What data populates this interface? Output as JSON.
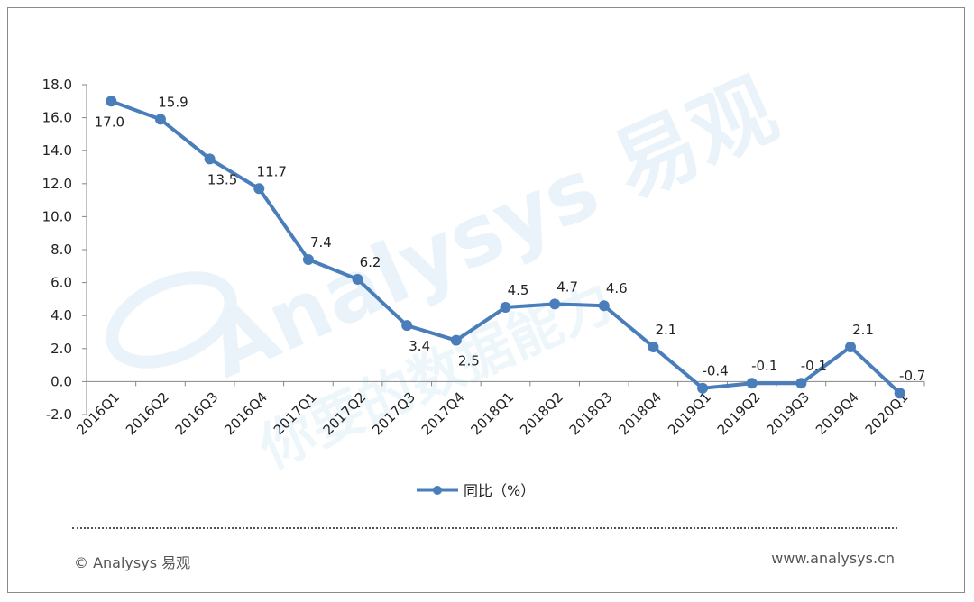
{
  "chart_data": {
    "type": "line",
    "categories": [
      "2016Q1",
      "2016Q2",
      "2016Q3",
      "2016Q4",
      "2017Q1",
      "2017Q2",
      "2017Q3",
      "2017Q4",
      "2018Q1",
      "2018Q2",
      "2018Q3",
      "2018Q4",
      "2019Q1",
      "2019Q2",
      "2019Q3",
      "2019Q4",
      "2020Q1"
    ],
    "series": [
      {
        "name": "同比（%）",
        "values": [
          17.0,
          15.9,
          13.5,
          11.7,
          7.4,
          6.2,
          3.4,
          2.5,
          4.5,
          4.7,
          4.6,
          2.1,
          -0.4,
          -0.1,
          -0.1,
          2.1,
          -0.7
        ],
        "color": "#4a7ebb"
      }
    ],
    "data_labels": [
      "17.0",
      "15.9",
      "13.5",
      "11.7",
      "7.4",
      "6.2",
      "3.4",
      "2.5",
      "4.5",
      "4.7",
      "4.6",
      "2.1",
      "-0.4",
      "-0.1",
      "-0.1",
      "2.1",
      "-0.7"
    ],
    "y_ticks": [
      "18.0",
      "16.0",
      "14.0",
      "12.0",
      "10.0",
      "8.0",
      "6.0",
      "4.0",
      "2.0",
      "0.0",
      "-2.0"
    ],
    "ylim": [
      -2,
      18
    ],
    "grid": false,
    "legend_position": "bottom"
  },
  "watermark": {
    "brand": "Analysys 易观",
    "slogan": "你要的数据能力"
  },
  "footer": {
    "copyright": "© Analysys 易观",
    "website": "www.analysys.cn"
  }
}
